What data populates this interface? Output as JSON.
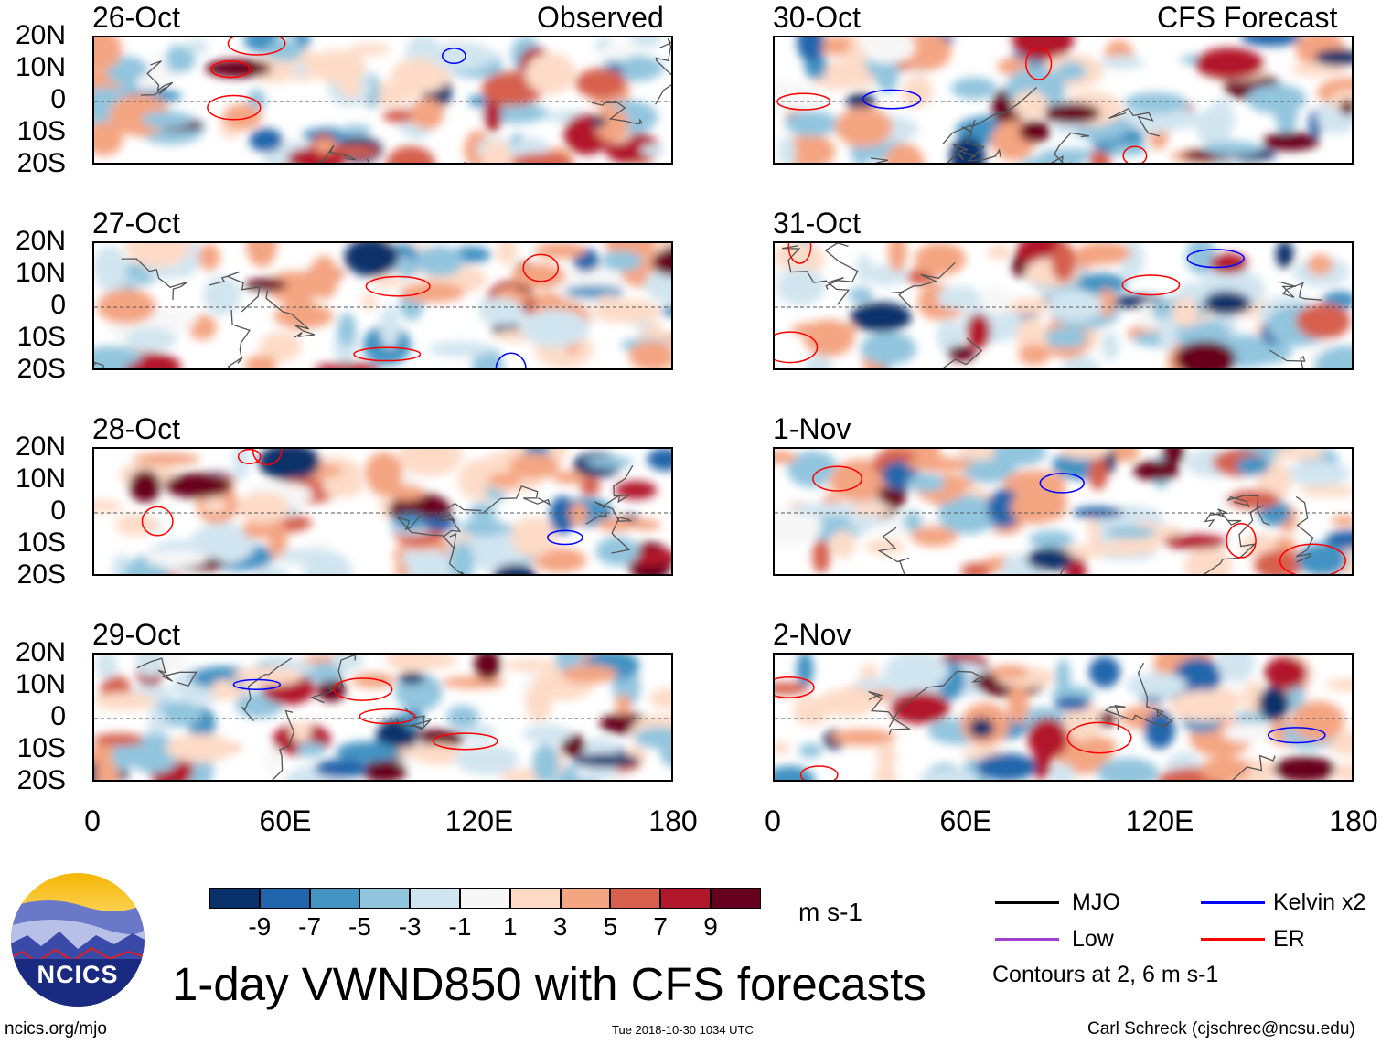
{
  "panel_headers": {
    "observed": "Observed",
    "forecast": "CFS Forecast"
  },
  "lat_labels": [
    "20N",
    "10N",
    "0",
    "10S",
    "20S"
  ],
  "lon_labels": [
    "0",
    "60E",
    "120E",
    "180"
  ],
  "observed_dates": [
    "26-Oct",
    "27-Oct",
    "28-Oct",
    "29-Oct"
  ],
  "forecast_dates": [
    "30-Oct",
    "31-Oct",
    "1-Nov",
    "2-Nov"
  ],
  "colorbar": {
    "colors": [
      "#08306b",
      "#2166ac",
      "#4393c3",
      "#92c5de",
      "#d1e5f0",
      "#f7f7f7",
      "#fddbc7",
      "#f4a582",
      "#d6604d",
      "#b2182b",
      "#67001f"
    ],
    "labels": [
      "-9",
      "-7",
      "-5",
      "-3",
      "-1",
      "1",
      "3",
      "5",
      "7",
      "9"
    ],
    "units": "m s-1"
  },
  "legend": {
    "items": [
      {
        "label": "MJO",
        "color": "#000000"
      },
      {
        "label": "Kelvin x2",
        "color": "#0000ff"
      },
      {
        "label": "Low",
        "color": "#a040d0"
      },
      {
        "label": "ER",
        "color": "#ff0000"
      }
    ],
    "contours_note": "Contours at 2, 6 m s-1"
  },
  "title": "1-day VWND850 with CFS forecasts",
  "logo_text": "NCICS",
  "footer": {
    "url": "ncics.org/mjo",
    "timestamp": "Tue 2018-10-30 1034 UTC",
    "author": "Carl Schreck (cjschrec@ncsu.edu)"
  }
}
